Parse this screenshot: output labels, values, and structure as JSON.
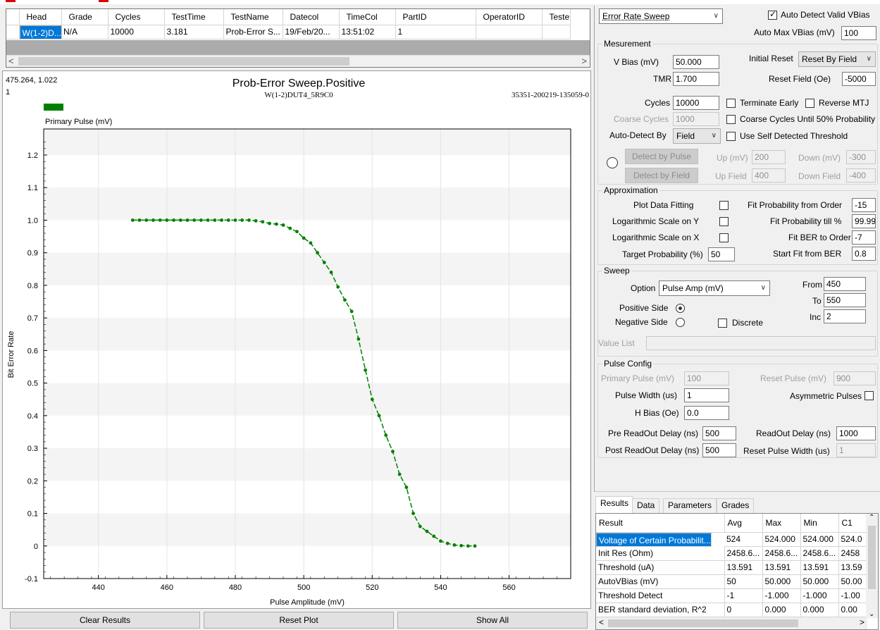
{
  "grid": {
    "columns": [
      "Head",
      "Grade",
      "Cycles",
      "TestTime",
      "TestName",
      "Datecol",
      "TimeCol",
      "PartID",
      "OperatorID",
      "Teste"
    ],
    "row": [
      "W(1-2)D...",
      "N/A",
      "10000",
      "3.181",
      "Prob-Error S...",
      "19/Feb/20...",
      "13:51:02",
      "1",
      "",
      ""
    ]
  },
  "chart_meta": {
    "corner_tl": "475.264, 1.022",
    "corner_tl2": "1",
    "title": "Prob-Error Sweep.Positive",
    "subtitle": "W(1-2)DUT4_5R9C0",
    "right_id": "35351-200219-135059-0",
    "legend_color": "#008000"
  },
  "chart_data": {
    "type": "line",
    "title": "Prob-Error Sweep.Positive",
    "xlabel": "Pulse Amplitude (mV)",
    "ylabel": "Bit Error Rate",
    "xlim": [
      424,
      578
    ],
    "ylim": [
      -0.1,
      1.28
    ],
    "xticks": [
      440,
      460,
      480,
      500,
      520,
      540,
      560
    ],
    "yticks": [
      -0.1,
      0,
      0.1,
      0.2,
      0.3,
      0.4,
      0.5,
      0.6,
      0.7,
      0.8,
      0.9,
      1.0,
      1.1,
      1.2
    ],
    "series": [
      {
        "name": "Primary Pulse (mV)",
        "color": "#008000",
        "x": [
          450,
          452,
          454,
          456,
          458,
          460,
          462,
          464,
          466,
          468,
          470,
          472,
          474,
          476,
          478,
          480,
          482,
          484,
          486,
          488,
          490,
          492,
          494,
          496,
          498,
          500,
          502,
          504,
          506,
          508,
          510,
          512,
          514,
          516,
          518,
          520,
          522,
          524,
          526,
          528,
          530,
          532,
          534,
          536,
          538,
          540,
          542,
          544,
          546,
          548,
          550
        ],
        "y": [
          1.0,
          1.0,
          1.0,
          1.0,
          1.0,
          1.0,
          1.0,
          1.0,
          1.0,
          1.0,
          1.0,
          1.0,
          1.0,
          1.0,
          1.0,
          1.0,
          1.0,
          1.0,
          0.998,
          0.995,
          0.99,
          0.988,
          0.985,
          0.975,
          0.965,
          0.945,
          0.93,
          0.9,
          0.87,
          0.84,
          0.795,
          0.755,
          0.72,
          0.635,
          0.54,
          0.45,
          0.4,
          0.34,
          0.29,
          0.22,
          0.18,
          0.1,
          0.06,
          0.045,
          0.03,
          0.015,
          0.008,
          0.003,
          0.001,
          0.0,
          0.0
        ]
      }
    ]
  },
  "buttons": {
    "clear": "Clear Results",
    "reset": "Reset Plot",
    "showall": "Show All"
  },
  "panel": {
    "mode_select": "Error Rate Sweep",
    "auto_detect_vbias": "Auto Detect Valid VBias",
    "auto_max_vbias_label": "Auto Max VBias (mV)",
    "auto_max_vbias": "100",
    "mesurement": {
      "title": "Mesurement",
      "vbias_label": "V Bias (mV)",
      "vbias": "50.000",
      "tmr_label": "TMR",
      "tmr": "1.700",
      "initial_reset_label": "Initial Reset",
      "initial_reset": "Reset By Field",
      "reset_field_label": "Reset Field (Oe)",
      "reset_field": "-5000",
      "cycles_label": "Cycles",
      "cycles": "10000",
      "terminate_early": "Terminate Early",
      "reverse_mtj": "Reverse MTJ",
      "coarse_cycles_label": "Coarse Cycles",
      "coarse_cycles": "1000",
      "coarse_until": "Coarse Cycles Until 50% Probability",
      "auto_detect_by_label": "Auto-Detect By",
      "auto_detect_by": "Field",
      "use_self": "Use Self Detected Threshold",
      "detect_pulse": "Detect by Pulse",
      "detect_field": "Detect by Field",
      "up_mv_label": "Up (mV)",
      "up_mv": "200",
      "down_mv_label": "Down (mV)",
      "down_mv": "-300",
      "up_field_label": "Up Field",
      "up_field": "400",
      "down_field_label": "Down Field",
      "down_field": "-400"
    },
    "approx": {
      "title": "Approximation",
      "plot_fit": "Plot Data Fitting",
      "log_y": "Logarithmic Scale on Y",
      "log_x": "Logarithmic Scale on X",
      "target_label": "Target Probability (%)",
      "target": "50",
      "fit_from_label": "Fit Probability from Order",
      "fit_from": "-15",
      "fit_till_label": "Fit Probability till %",
      "fit_till": "99.99",
      "fit_ber_label": "Fit BER to Order",
      "fit_ber": "-7",
      "start_fit_label": "Start Fit from BER",
      "start_fit": "0.8"
    },
    "sweep": {
      "title": "Sweep",
      "option_label": "Option",
      "option": "Pulse Amp (mV)",
      "from_label": "From",
      "from": "450",
      "to_label": "To",
      "to": "550",
      "inc_label": "Inc",
      "inc": "2",
      "positive": "Positive Side",
      "negative": "Negative Side",
      "discrete": "Discrete",
      "value_list_label": "Value List"
    },
    "pulse": {
      "title": "Pulse Config",
      "primary_label": "Primary Pulse (mV)",
      "primary": "100",
      "reset_pulse_label": "Reset Pulse (mV)",
      "reset_pulse": "900",
      "width_label": "Pulse Width (us)",
      "width": "1",
      "asym": "Asymmetric Pulses",
      "hbias_label": "H Bias (Oe)",
      "hbias": "0.0",
      "pre_label": "Pre ReadOut Delay (ns)",
      "pre": "500",
      "readout_label": "ReadOut Delay (ns)",
      "readout": "1000",
      "post_label": "Post ReadOut Delay (ns)",
      "post": "500",
      "reset_width_label": "Reset Pulse Width (us)",
      "reset_width": "1"
    }
  },
  "results": {
    "tabs": [
      "Results",
      "Data",
      "Parameters",
      "Grades"
    ],
    "columns": [
      "Result",
      "Avg",
      "Max",
      "Min",
      "C1"
    ],
    "rows": [
      [
        "Voltage of Certain Probabilit...",
        "524",
        "524.000",
        "524.000",
        "524.0"
      ],
      [
        "Init Res (Ohm)",
        "2458.6...",
        "2458.6...",
        "2458.6...",
        "2458"
      ],
      [
        "Threshold (uA)",
        "13.591",
        "13.591",
        "13.591",
        "13.59"
      ],
      [
        "AutoVBias (mV)",
        "50",
        "50.000",
        "50.000",
        "50.00"
      ],
      [
        "Threshold Detect",
        "-1",
        "-1.000",
        "-1.000",
        "-1.00"
      ],
      [
        "BER standard deviation, R^2",
        "0",
        "0.000",
        "0.000",
        "0.00"
      ]
    ]
  }
}
